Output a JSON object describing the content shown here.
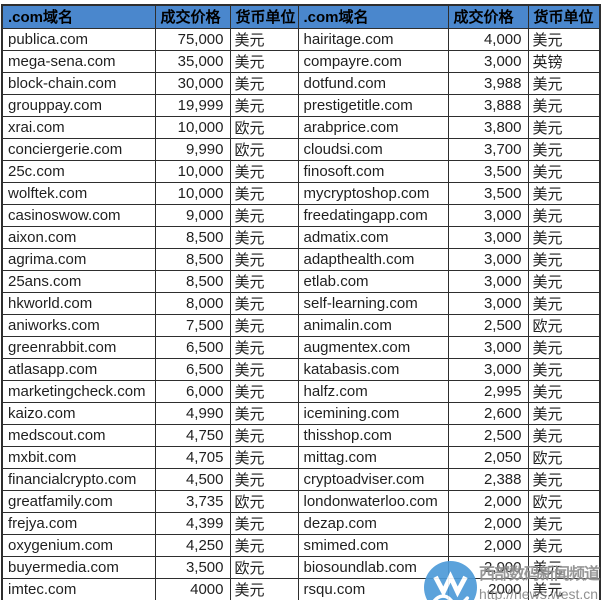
{
  "table": {
    "headers": {
      "domain": ".com域名",
      "price": "成交价格",
      "currency": "货币单位"
    },
    "left_rows": [
      {
        "domain": "publica.com",
        "price": "75,000",
        "currency": "美元"
      },
      {
        "domain": "mega-sena.com",
        "price": "35,000",
        "currency": "美元"
      },
      {
        "domain": "block-chain.com",
        "price": "30,000",
        "currency": "美元"
      },
      {
        "domain": "grouppay.com",
        "price": "19,999",
        "currency": "美元"
      },
      {
        "domain": "xrai.com",
        "price": "10,000",
        "currency": "欧元"
      },
      {
        "domain": "conciergerie.com",
        "price": "9,990",
        "currency": "欧元"
      },
      {
        "domain": "25c.com",
        "price": "10,000",
        "currency": "美元"
      },
      {
        "domain": "wolftek.com",
        "price": "10,000",
        "currency": "美元"
      },
      {
        "domain": "casinoswow.com",
        "price": "9,000",
        "currency": "美元"
      },
      {
        "domain": "aixon.com",
        "price": "8,500",
        "currency": "美元"
      },
      {
        "domain": "agrima.com",
        "price": "8,500",
        "currency": "美元"
      },
      {
        "domain": "25ans.com",
        "price": "8,500",
        "currency": "美元"
      },
      {
        "domain": "hkworld.com",
        "price": "8,000",
        "currency": "美元"
      },
      {
        "domain": "aniworks.com",
        "price": "7,500",
        "currency": "美元"
      },
      {
        "domain": "greenrabbit.com",
        "price": "6,500",
        "currency": "美元"
      },
      {
        "domain": "atlasapp.com",
        "price": "6,500",
        "currency": "美元"
      },
      {
        "domain": "marketingcheck.com",
        "price": "6,000",
        "currency": "美元"
      },
      {
        "domain": "kaizo.com",
        "price": "4,990",
        "currency": "美元"
      },
      {
        "domain": "medscout.com",
        "price": "4,750",
        "currency": "美元"
      },
      {
        "domain": "mxbit.com",
        "price": "4,705",
        "currency": "美元"
      },
      {
        "domain": "financialcrypto.com",
        "price": "4,500",
        "currency": "美元"
      },
      {
        "domain": "greatfamily.com",
        "price": "3,735",
        "currency": "欧元"
      },
      {
        "domain": "frejya.com",
        "price": "4,399",
        "currency": "美元"
      },
      {
        "domain": "oxygenium.com",
        "price": "4,250",
        "currency": "美元"
      },
      {
        "domain": "buyermedia.com",
        "price": "3,500",
        "currency": "欧元"
      },
      {
        "domain": "imtec.com",
        "price": "4000",
        "currency": "美元"
      }
    ],
    "right_rows": [
      {
        "domain": "hairitage.com",
        "price": "4,000",
        "currency": "美元"
      },
      {
        "domain": "compayre.com",
        "price": "3,000",
        "currency": "英镑"
      },
      {
        "domain": "dotfund.com",
        "price": "3,988",
        "currency": "美元"
      },
      {
        "domain": "prestigetitle.com",
        "price": "3,888",
        "currency": "美元"
      },
      {
        "domain": "arabprice.com",
        "price": "3,800",
        "currency": "美元"
      },
      {
        "domain": "cloudsi.com",
        "price": "3,700",
        "currency": "美元"
      },
      {
        "domain": "finosoft.com",
        "price": "3,500",
        "currency": "美元"
      },
      {
        "domain": "mycryptoshop.com",
        "price": "3,500",
        "currency": "美元"
      },
      {
        "domain": "freedatingapp.com",
        "price": "3,000",
        "currency": "美元"
      },
      {
        "domain": "admatix.com",
        "price": "3,000",
        "currency": "美元"
      },
      {
        "domain": "adapthealth.com",
        "price": "3,000",
        "currency": "美元"
      },
      {
        "domain": "etlab.com",
        "price": "3,000",
        "currency": "美元"
      },
      {
        "domain": "self-learning.com",
        "price": "3,000",
        "currency": "美元"
      },
      {
        "domain": "animalin.com",
        "price": "2,500",
        "currency": "欧元"
      },
      {
        "domain": "augmentex.com",
        "price": "3,000",
        "currency": "美元"
      },
      {
        "domain": "katabasis.com",
        "price": "3,000",
        "currency": "美元"
      },
      {
        "domain": "halfz.com",
        "price": "2,995",
        "currency": "美元"
      },
      {
        "domain": "icemining.com",
        "price": "2,600",
        "currency": "美元"
      },
      {
        "domain": "thisshop.com",
        "price": "2,500",
        "currency": "美元"
      },
      {
        "domain": "mittag.com",
        "price": "2,050",
        "currency": "欧元"
      },
      {
        "domain": "cryptoadviser.com",
        "price": "2,388",
        "currency": "美元"
      },
      {
        "domain": "londonwaterloo.com",
        "price": "2,000",
        "currency": "欧元"
      },
      {
        "domain": "dezap.com",
        "price": "2,000",
        "currency": "美元"
      },
      {
        "domain": "smimed.com",
        "price": "2,000",
        "currency": "美元"
      },
      {
        "domain": "biosoundlab.com",
        "price": "2,000",
        "currency": "美元"
      },
      {
        "domain": "rsqu.com",
        "price": "2000",
        "currency": "美元"
      }
    ]
  },
  "watermark": {
    "site_name": "西部数码新闻频道",
    "url": "http://news.west.cn",
    "logo": "west-cn-wave-logo"
  },
  "colors": {
    "header_bg": "#4a87cd",
    "header_text": "#000000",
    "cell_text": "#1f1f1f",
    "border": "#2e2e2e",
    "watermark_blue": "#4e9bd8",
    "watermark_gray": "#7d7d7d"
  }
}
